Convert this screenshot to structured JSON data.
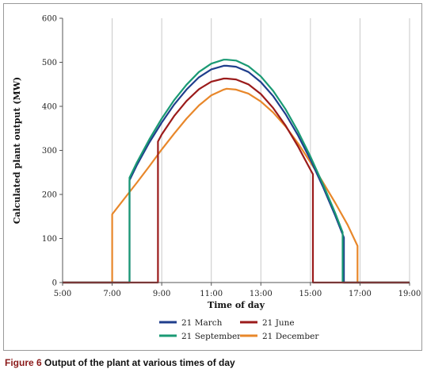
{
  "caption": {
    "number": "Figure 6",
    "text": "Output of the plant at various times of day"
  },
  "chart_data": {
    "type": "line",
    "title": "",
    "xlabel": "Time of day",
    "ylabel": "Calculated plant output (MW)",
    "xlim": [
      5,
      19
    ],
    "ylim": [
      0,
      600
    ],
    "xticks": [
      5,
      7,
      9,
      11,
      13,
      15,
      17,
      19
    ],
    "xtick_labels": [
      "5:00",
      "7:00",
      "9:00",
      "11:00",
      "13:00",
      "15:00",
      "17:00",
      "19:00"
    ],
    "yticks": [
      0,
      100,
      200,
      300,
      400,
      500,
      600
    ],
    "ytick_labels": [
      "0",
      "100",
      "200",
      "300",
      "400",
      "500",
      "600"
    ],
    "grid": {
      "vertical": true,
      "horizontal": false
    },
    "legend": {
      "position": "bottom",
      "columns": 2
    },
    "series": [
      {
        "name": "21 March",
        "color": "#1f3e8c",
        "x": [
          5,
          7.7,
          7.7,
          8,
          8.5,
          9,
          9.5,
          10,
          10.5,
          11,
          11.5,
          11.62,
          12,
          12.5,
          13,
          13.5,
          14,
          14.5,
          15,
          15.5,
          16,
          16.35,
          16.35,
          19
        ],
        "y": [
          0,
          0,
          232,
          267,
          318,
          363,
          404,
          438,
          466,
          484,
          492,
          492,
          490,
          478,
          455,
          423,
          382,
          334,
          279,
          218,
          152,
          102,
          0,
          0
        ]
      },
      {
        "name": "21 June",
        "color": "#9b1b1b",
        "x": [
          5,
          8.85,
          8.85,
          9,
          9.5,
          10,
          10.5,
          11,
          11.5,
          11.62,
          12,
          12.5,
          13,
          13.5,
          14,
          14.5,
          15,
          15.1,
          15.1,
          19
        ],
        "y": [
          0,
          0,
          320,
          336,
          378,
          412,
          439,
          456,
          463,
          463,
          461,
          450,
          428,
          396,
          356,
          309,
          256,
          246,
          0,
          0
        ]
      },
      {
        "name": "21 September",
        "color": "#1a9a74",
        "x": [
          5,
          7.7,
          7.7,
          8,
          8.5,
          9,
          9.5,
          10,
          10.5,
          11,
          11.5,
          11.62,
          12,
          12.5,
          13,
          13.5,
          14,
          14.5,
          15,
          15.5,
          16,
          16.3,
          16.3,
          19
        ],
        "y": [
          0,
          0,
          238,
          273,
          325,
          372,
          414,
          449,
          478,
          497,
          506,
          506,
          504,
          491,
          468,
          435,
          393,
          343,
          286,
          224,
          158,
          114,
          0,
          0
        ]
      },
      {
        "name": "21 December",
        "color": "#e8872a",
        "x": [
          5,
          7.0,
          7.0,
          7.5,
          8,
          8.5,
          9,
          9.5,
          10,
          10.5,
          11,
          11.5,
          11.62,
          12,
          12.5,
          13,
          13.5,
          14,
          14.5,
          15,
          15.5,
          16,
          16.5,
          16.9,
          16.9,
          19
        ],
        "y": [
          0,
          0,
          155,
          191,
          227,
          264,
          302,
          338,
          372,
          402,
          425,
          438,
          440,
          438,
          429,
          411,
          386,
          354,
          316,
          273,
          228,
          181,
          131,
          83,
          0,
          0
        ]
      }
    ]
  }
}
